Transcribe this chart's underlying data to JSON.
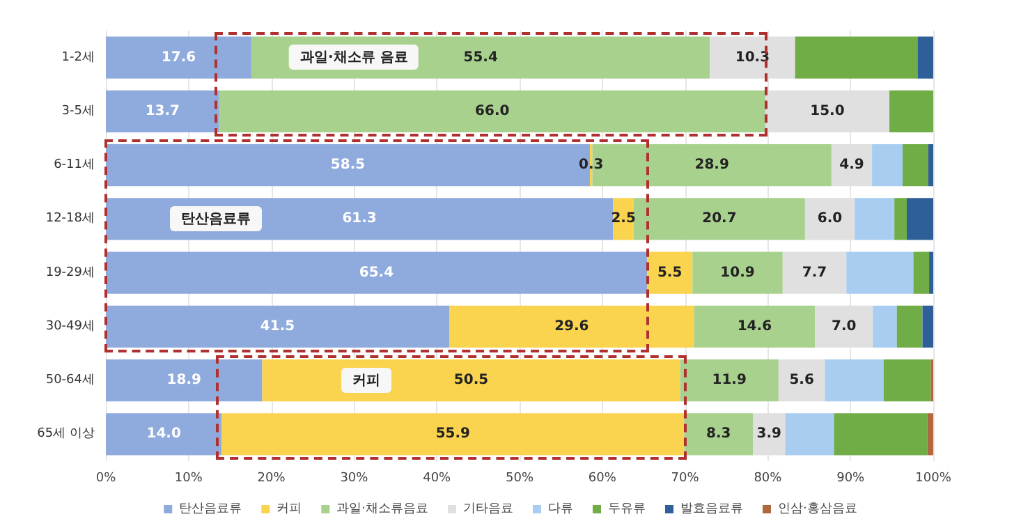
{
  "chart_data": {
    "type": "bar",
    "orientation": "horizontal",
    "stacked": true,
    "categories": [
      "1-2세",
      "3-5세",
      "6-11세",
      "12-18세",
      "19-29세",
      "30-49세",
      "50-64세",
      "65세 이상"
    ],
    "series": [
      {
        "name": "탄산음료류",
        "color": "#8faadc",
        "values": [
          17.6,
          13.7,
          58.5,
          61.3,
          65.4,
          41.5,
          18.9,
          14.0
        ],
        "value_labels": [
          "17.6",
          "13.7",
          "58.5",
          "61.3",
          "65.4",
          "41.5",
          "18.9",
          "14.0"
        ]
      },
      {
        "name": "커피",
        "color": "#fad34f",
        "values": [
          0,
          0,
          0.3,
          2.5,
          5.5,
          29.6,
          50.5,
          55.9
        ],
        "value_labels": [
          null,
          null,
          "0.3",
          "2.5",
          "5.5",
          "29.6",
          "50.5",
          "55.9"
        ]
      },
      {
        "name": "과일·채소류음료",
        "color": "#a9d18e",
        "values": [
          55.4,
          66.0,
          28.9,
          20.7,
          10.9,
          14.6,
          11.9,
          8.3
        ],
        "value_labels": [
          "55.4",
          "66.0",
          "28.9",
          "20.7",
          "10.9",
          "14.6",
          "11.9",
          "8.3"
        ]
      },
      {
        "name": "기타음료",
        "color": "#e0e0e0",
        "values": [
          10.3,
          15.0,
          4.9,
          6.0,
          7.7,
          7.0,
          5.6,
          3.9
        ],
        "value_labels": [
          "10.3",
          "15.0",
          "4.9",
          "6.0",
          "7.7",
          "7.0",
          "5.6",
          "3.9"
        ]
      },
      {
        "name": "다류",
        "color": "#a9cdf0",
        "values": [
          0,
          0,
          3.7,
          4.8,
          8.1,
          2.9,
          7.1,
          5.9
        ]
      },
      {
        "name": "두유류",
        "color": "#70ad47",
        "values": [
          14.8,
          5.3,
          3.1,
          1.5,
          1.9,
          3.1,
          5.7,
          11.3
        ]
      },
      {
        "name": "발효음료류",
        "color": "#2f5f98",
        "values": [
          1.9,
          0,
          0.6,
          3.2,
          0.5,
          1.3,
          0,
          0
        ]
      },
      {
        "name": "인삼·홍삼음료",
        "color": "#b0683c",
        "values": [
          0,
          0,
          0,
          0,
          0,
          0,
          0.3,
          0.7
        ]
      }
    ],
    "xlim": [
      0,
      100
    ],
    "xticks": [
      {
        "value": 0,
        "label": "0%"
      },
      {
        "value": 10,
        "label": "10%"
      },
      {
        "value": 20,
        "label": "20%"
      },
      {
        "value": 30,
        "label": "30%"
      },
      {
        "value": 40,
        "label": "40%"
      },
      {
        "value": 50,
        "label": "50%"
      },
      {
        "value": 60,
        "label": "60%"
      },
      {
        "value": 70,
        "label": "70%"
      },
      {
        "value": 80,
        "label": "80%"
      },
      {
        "value": 90,
        "label": "90%"
      },
      {
        "value": 100,
        "label": "100%"
      }
    ],
    "grid": "x",
    "legend": "bottom",
    "annotations": [
      {
        "text": "과일·채소류 음료",
        "x": 30,
        "y": "1-2세"
      },
      {
        "text": "탄산음료류",
        "x": 13.3,
        "y": "12-18세"
      },
      {
        "text": "커피",
        "x": 31.5,
        "y": "50-64세"
      }
    ]
  }
}
